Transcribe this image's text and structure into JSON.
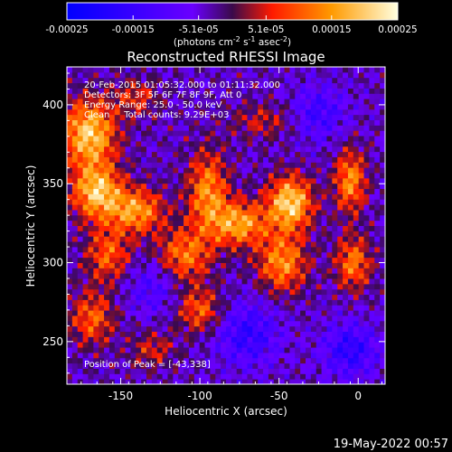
{
  "chart_data": {
    "type": "heatmap",
    "title": "Reconstructed RHESSI Image",
    "xlabel": "Heliocentric X (arcsec)",
    "ylabel": "Heliocentric Y (arcsec)",
    "xlim": [
      -184,
      17
    ],
    "ylim": [
      223,
      424
    ],
    "xticks": [
      -150,
      -100,
      -50,
      0
    ],
    "yticks": [
      250,
      300,
      350,
      400
    ],
    "colorbar": {
      "range": [
        -0.00025,
        0.00025
      ],
      "ticks": [
        "-0.00025",
        "-0.00015",
        "-5.1e-05",
        "5.1e-05",
        "0.00015",
        "0.00025"
      ],
      "ticks_num": [
        -0.00025,
        -0.00015,
        -5.1e-05,
        5.1e-05,
        0.00015,
        0.00025
      ],
      "unit_main": "(photons cm",
      "unit_sup1": "-2",
      "unit_mid1": " s",
      "unit_sup2": "-1",
      "unit_mid2": " asec",
      "unit_sup3": "-2",
      "unit_end": ")"
    },
    "annotations": [
      "20-Feb-2015 01:05:32.000 to 01:11:32.000",
      "Detectors: 3F 5F 6F 7F 8F 9F, Att 0",
      "Energy Range: 25.0 - 50.0 keV",
      "Clean     Total counts: 9.29E+03"
    ],
    "peak_label": "Position of Peak = [-43,338]",
    "peak": [
      -43,
      338
    ],
    "sources": [
      {
        "x": -170,
        "y": 382,
        "amp": 0.00024,
        "sx": 12,
        "sy": 15
      },
      {
        "x": -165,
        "y": 345,
        "amp": 0.00023,
        "sx": 11,
        "sy": 12
      },
      {
        "x": -140,
        "y": 333,
        "amp": 0.00019,
        "sx": 12,
        "sy": 10
      },
      {
        "x": -158,
        "y": 305,
        "amp": 0.00014,
        "sx": 10,
        "sy": 12
      },
      {
        "x": -95,
        "y": 345,
        "amp": 0.00018,
        "sx": 9,
        "sy": 18
      },
      {
        "x": -110,
        "y": 305,
        "amp": 0.00016,
        "sx": 12,
        "sy": 12
      },
      {
        "x": -75,
        "y": 325,
        "amp": 0.0002,
        "sx": 12,
        "sy": 10
      },
      {
        "x": -43,
        "y": 338,
        "amp": 0.00025,
        "sx": 10,
        "sy": 12
      },
      {
        "x": -48,
        "y": 300,
        "amp": 0.00018,
        "sx": 11,
        "sy": 13
      },
      {
        "x": -5,
        "y": 352,
        "amp": 0.00018,
        "sx": 7,
        "sy": 14
      },
      {
        "x": -3,
        "y": 300,
        "amp": 0.00016,
        "sx": 8,
        "sy": 12
      },
      {
        "x": -100,
        "y": 270,
        "amp": 0.00014,
        "sx": 10,
        "sy": 10
      },
      {
        "x": -168,
        "y": 265,
        "amp": 0.00014,
        "sx": 10,
        "sy": 12
      },
      {
        "x": -140,
        "y": 405,
        "amp": 0.0001,
        "sx": 10,
        "sy": 8
      },
      {
        "x": -60,
        "y": 390,
        "amp": 8e-05,
        "sx": 14,
        "sy": 8
      },
      {
        "x": -130,
        "y": 245,
        "amp": 9e-05,
        "sx": 10,
        "sy": 8
      },
      {
        "x": -70,
        "y": 255,
        "amp": -0.00012,
        "sx": 14,
        "sy": 14
      },
      {
        "x": -25,
        "y": 395,
        "amp": -0.0001,
        "sx": 12,
        "sy": 12
      },
      {
        "x": -5,
        "y": 245,
        "amp": -0.00013,
        "sx": 12,
        "sy": 12
      },
      {
        "x": -130,
        "y": 285,
        "amp": -8e-05,
        "sx": 12,
        "sy": 12
      }
    ]
  },
  "footer_date": "19-May-2022 00:57"
}
